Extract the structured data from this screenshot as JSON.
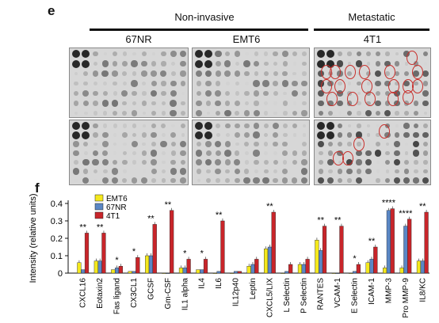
{
  "panel_e": {
    "letter": "e",
    "group_left": "Non-invasive",
    "group_right": "Metastatic",
    "lines": [
      "67NR",
      "EMT6",
      "4T1"
    ]
  },
  "panel_f": {
    "letter": "f"
  },
  "colors": {
    "EMT6": "#f4e81c",
    "67NR": "#5b87c5",
    "4T1": "#c8252a",
    "circle": "#c8302c"
  },
  "chart_data": {
    "type": "bar",
    "ylabel": "Intensity (relative units)",
    "ylim": [
      0,
      0.4
    ],
    "yticks": [
      "0",
      "0.1",
      "0.2",
      "0.3",
      "0.4"
    ],
    "legend": {
      "placement": "top-left",
      "entries": [
        "EMT6",
        "67NR",
        "4T1"
      ]
    },
    "categories": [
      "CXCL16",
      "Eotaxin2",
      "Fas ligand",
      "CX3CL1",
      "GCSF",
      "Gm-CSF",
      "IL1 alpha",
      "IL4",
      "IL6",
      "IL12p40",
      "Leptin",
      "CXCL5/LIX",
      "L Selectin",
      "P Selectin",
      "RANTES",
      "VCAM-1",
      "E Selectin",
      "ICAM-1",
      "MMP-3",
      "Pro MMP-9",
      "IL8/KC"
    ],
    "series": [
      {
        "name": "EMT6",
        "values": [
          0.06,
          0.07,
          0.02,
          0.01,
          0.1,
          0.0,
          0.03,
          0.02,
          0.0,
          0.0,
          0.04,
          0.14,
          0.0,
          0.05,
          0.19,
          0.0,
          0.0,
          0.06,
          0.03,
          0.03,
          0.07
        ]
      },
      {
        "name": "67NR",
        "values": [
          0.02,
          0.07,
          0.03,
          0.01,
          0.1,
          0.0,
          0.03,
          0.02,
          0.01,
          0.01,
          0.05,
          0.15,
          0.01,
          0.05,
          0.13,
          0.0,
          0.01,
          0.08,
          0.36,
          0.27,
          0.07
        ]
      },
      {
        "name": "4T1",
        "values": [
          0.23,
          0.23,
          0.04,
          0.09,
          0.28,
          0.36,
          0.08,
          0.08,
          0.3,
          0.01,
          0.08,
          0.35,
          0.05,
          0.08,
          0.27,
          0.27,
          0.05,
          0.15,
          0.37,
          0.31,
          0.35
        ]
      }
    ],
    "annotations": [
      "**",
      "**",
      "*",
      "*",
      "**",
      "**",
      "*",
      "*",
      "**",
      "",
      "",
      "**",
      "",
      "",
      "**",
      "**",
      "*",
      "**",
      "****",
      "****",
      "**"
    ]
  }
}
